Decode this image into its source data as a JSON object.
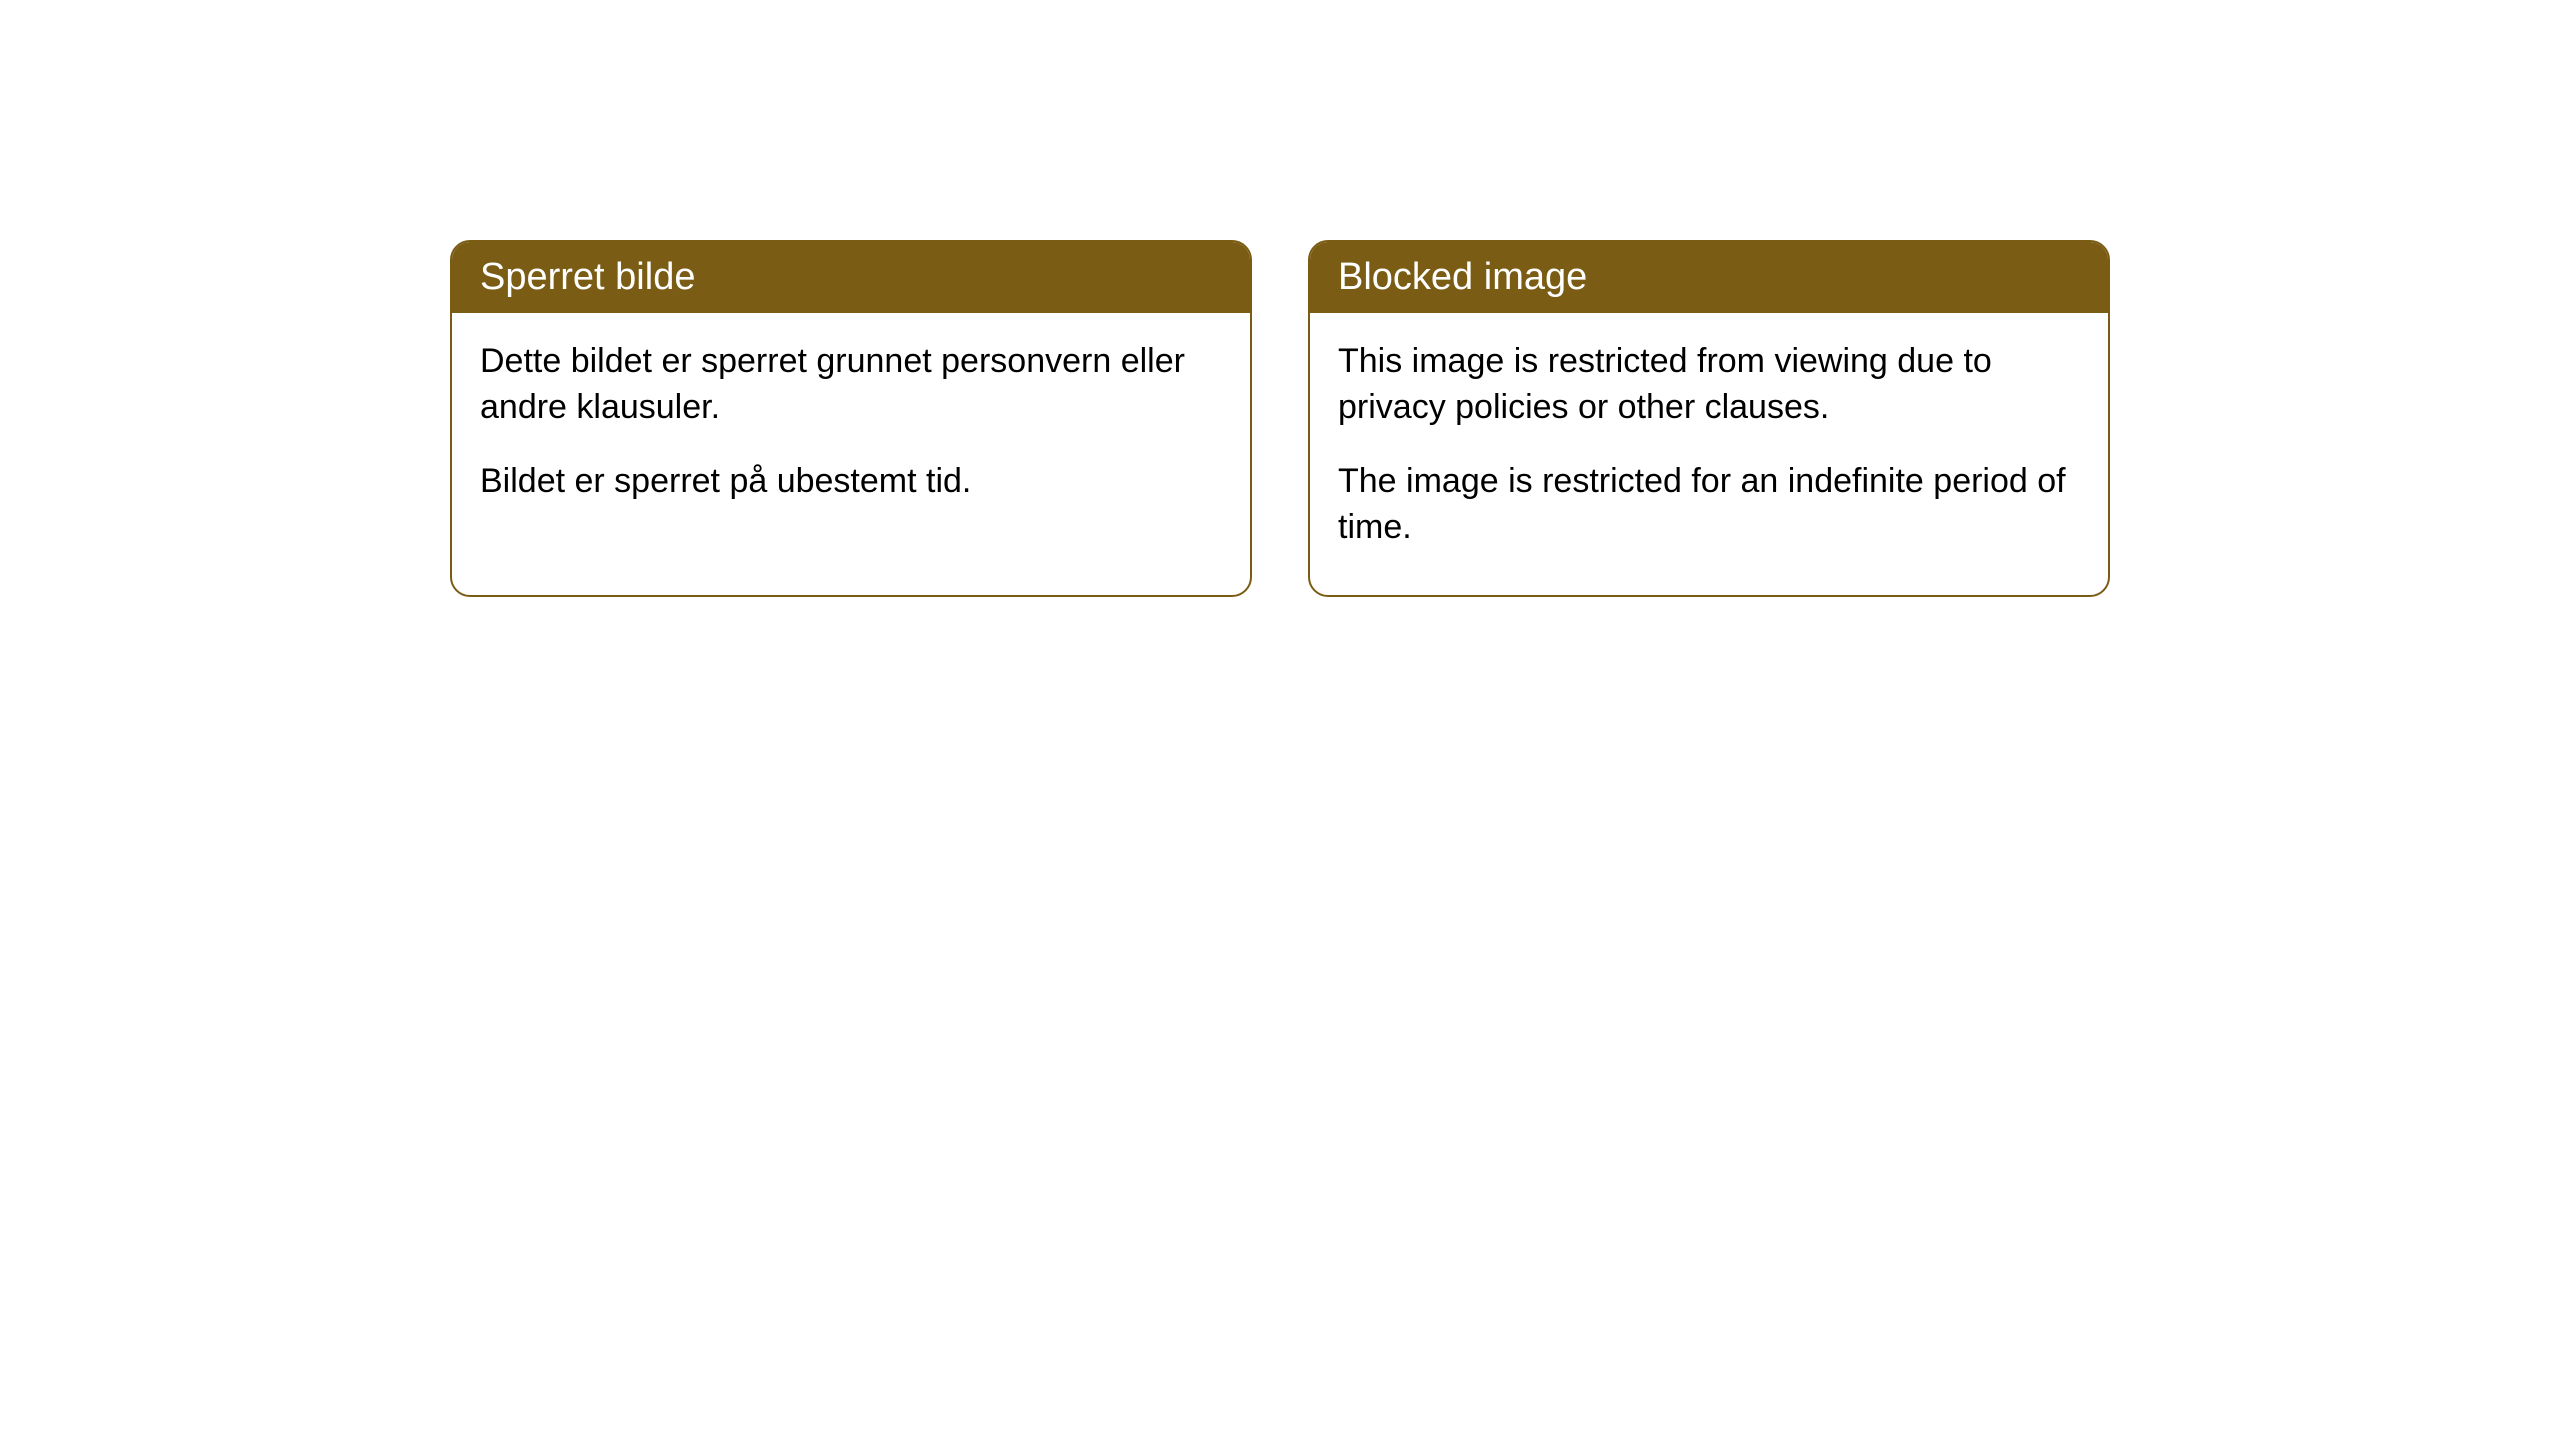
{
  "cards": [
    {
      "title": "Sperret bilde",
      "paragraph1": "Dette bildet er sperret grunnet personvern eller andre klausuler.",
      "paragraph2": "Bildet er sperret på ubestemt tid."
    },
    {
      "title": "Blocked image",
      "paragraph1": "This image is restricted from viewing due to privacy policies or other clauses.",
      "paragraph2": "The image is restricted for an indefinite period of time."
    }
  ],
  "styling": {
    "header_background": "#7a5c14",
    "header_text_color": "#ffffff",
    "card_border_color": "#7a5c14",
    "card_background": "#ffffff",
    "body_text_color": "#000000",
    "page_background": "#ffffff",
    "border_radius": 20,
    "title_fontsize": 38,
    "body_fontsize": 34
  }
}
